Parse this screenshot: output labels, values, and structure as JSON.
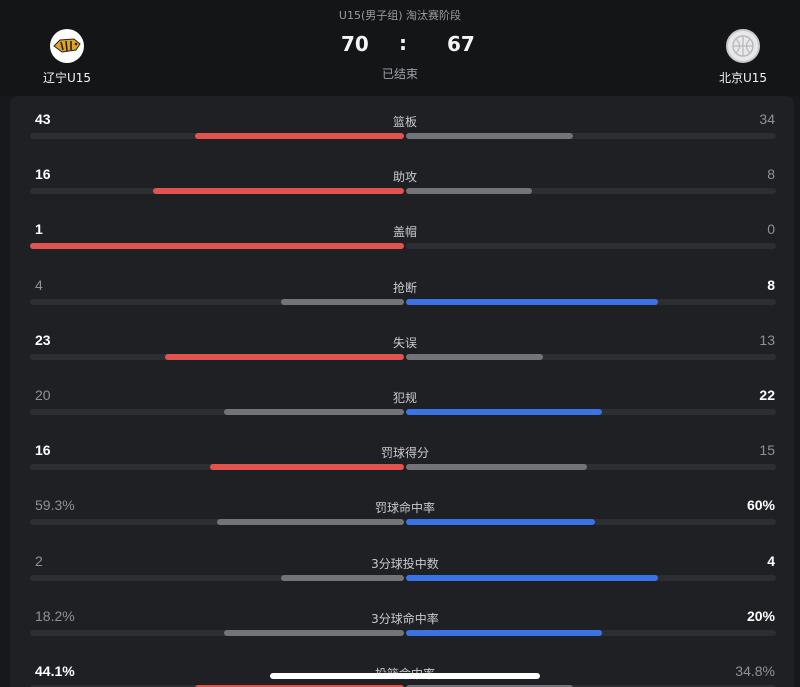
{
  "match": {
    "stage": "U15(男子组) 淘汰赛阶段",
    "home_team": "辽宁U15",
    "away_team": "北京U15",
    "home_score": "70",
    "away_score": "67",
    "separator": ":",
    "status": "已结束",
    "home_logo_icon": "tiger-logo-icon",
    "away_logo_icon": "basketball-logo-icon"
  },
  "colors": {
    "home_accent": "#e25350",
    "away_accent": "#3b73e6",
    "neutral_bar": "#72747a"
  },
  "stats": [
    {
      "label": "篮板",
      "home": "43",
      "away": "34",
      "home_ratio": 0.56,
      "away_ratio": 0.45,
      "leader": "home"
    },
    {
      "label": "助攻",
      "home": "16",
      "away": "8",
      "home_ratio": 0.67,
      "away_ratio": 0.34,
      "leader": "home"
    },
    {
      "label": "盖帽",
      "home": "1",
      "away": "0",
      "home_ratio": 1.0,
      "away_ratio": 0.0,
      "leader": "home"
    },
    {
      "label": "抢断",
      "home": "4",
      "away": "8",
      "home_ratio": 0.33,
      "away_ratio": 0.68,
      "leader": "away"
    },
    {
      "label": "失误",
      "home": "23",
      "away": "13",
      "home_ratio": 0.64,
      "away_ratio": 0.37,
      "leader": "home"
    },
    {
      "label": "犯规",
      "home": "20",
      "away": "22",
      "home_ratio": 0.48,
      "away_ratio": 0.53,
      "leader": "away"
    },
    {
      "label": "罚球得分",
      "home": "16",
      "away": "15",
      "home_ratio": 0.52,
      "away_ratio": 0.49,
      "leader": "home"
    },
    {
      "label": "罚球命中率",
      "home": "59.3%",
      "away": "60%",
      "home_ratio": 0.5,
      "away_ratio": 0.51,
      "leader": "away"
    },
    {
      "label": "3分球投中数",
      "home": "2",
      "away": "4",
      "home_ratio": 0.33,
      "away_ratio": 0.68,
      "leader": "away"
    },
    {
      "label": "3分球命中率",
      "home": "18.2%",
      "away": "20%",
      "home_ratio": 0.48,
      "away_ratio": 0.53,
      "leader": "away"
    },
    {
      "label": "投篮命中率",
      "home": "44.1%",
      "away": "34.8%",
      "home_ratio": 0.56,
      "away_ratio": 0.45,
      "leader": "home"
    }
  ]
}
